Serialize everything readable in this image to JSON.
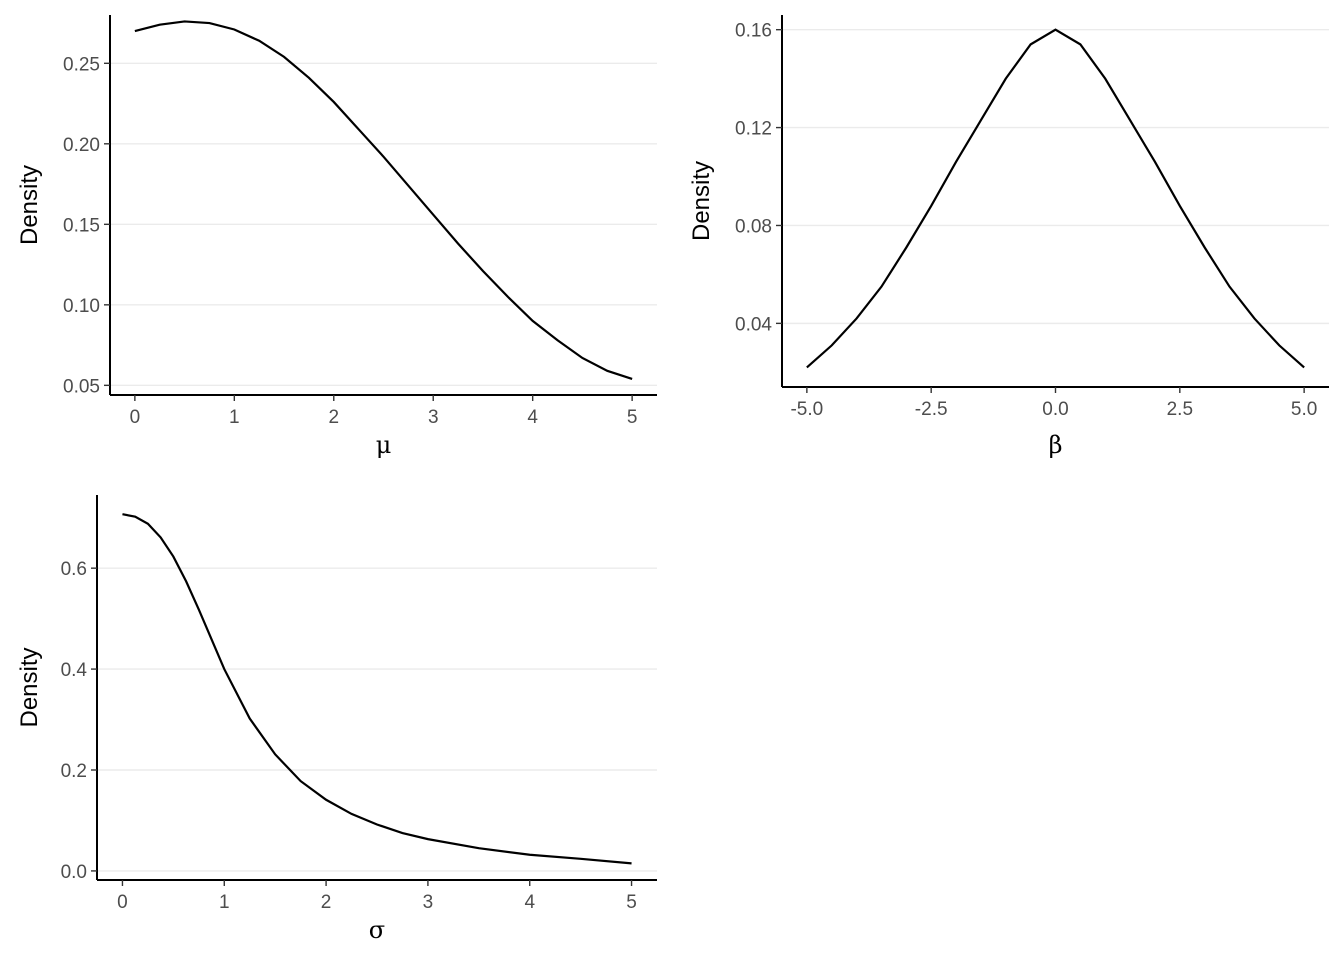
{
  "chart_data": [
    {
      "type": "line",
      "xlabel": "μ",
      "ylabel": "Density",
      "xlim": [
        -0.25,
        5.25
      ],
      "ylim": [
        0.044,
        0.28
      ],
      "xticks": [
        0,
        1,
        2,
        3,
        4,
        5
      ],
      "xtick_labels": [
        "0",
        "1",
        "2",
        "3",
        "4",
        "5"
      ],
      "yticks": [
        0.05,
        0.1,
        0.15,
        0.2,
        0.25
      ],
      "ytick_labels": [
        "0.05",
        "0.10",
        "0.15",
        "0.20",
        "0.25"
      ],
      "grid": "horizontal major",
      "series": [
        {
          "x": [
            0,
            0.25,
            0.5,
            0.75,
            1,
            1.25,
            1.5,
            1.75,
            2,
            2.25,
            2.5,
            2.75,
            3,
            3.25,
            3.5,
            3.75,
            4,
            4.25,
            4.5,
            4.75,
            5
          ],
          "y": [
            0.27,
            0.274,
            0.276,
            0.275,
            0.271,
            0.264,
            0.254,
            0.241,
            0.226,
            0.209,
            0.192,
            0.174,
            0.156,
            0.138,
            0.121,
            0.105,
            0.09,
            0.078,
            0.067,
            0.059,
            0.054
          ]
        }
      ]
    },
    {
      "type": "line",
      "xlabel": "β",
      "ylabel": "Density",
      "xlim": [
        -5.5,
        5.5
      ],
      "ylim": [
        0.014,
        0.166
      ],
      "xticks": [
        -5,
        -2.5,
        0,
        2.5,
        5
      ],
      "xtick_labels": [
        "-5.0",
        "-2.5",
        "0.0",
        "2.5",
        "5.0"
      ],
      "yticks": [
        0.04,
        0.08,
        0.12,
        0.16
      ],
      "ytick_labels": [
        "0.04",
        "0.08",
        "0.12",
        "0.16"
      ],
      "grid": "horizontal major",
      "series": [
        {
          "x": [
            -5,
            -4.5,
            -4,
            -3.5,
            -3,
            -2.5,
            -2,
            -1.5,
            -1,
            -0.5,
            0,
            0.5,
            1,
            1.5,
            2,
            2.5,
            3,
            3.5,
            4,
            4.5,
            5
          ],
          "y": [
            0.022,
            0.031,
            0.042,
            0.055,
            0.071,
            0.088,
            0.106,
            0.123,
            0.14,
            0.154,
            0.16,
            0.154,
            0.14,
            0.123,
            0.106,
            0.088,
            0.071,
            0.055,
            0.042,
            0.031,
            0.022
          ]
        }
      ]
    },
    {
      "type": "line",
      "xlabel": "σ",
      "ylabel": "Density",
      "xlim": [
        -0.25,
        5.25
      ],
      "ylim": [
        -0.018,
        0.745
      ],
      "xticks": [
        0,
        1,
        2,
        3,
        4,
        5
      ],
      "xtick_labels": [
        "0",
        "1",
        "2",
        "3",
        "4",
        "5"
      ],
      "yticks": [
        0.0,
        0.2,
        0.4,
        0.6
      ],
      "ytick_labels": [
        "0.0",
        "0.2",
        "0.4",
        "0.6"
      ],
      "grid": "horizontal major",
      "series": [
        {
          "x": [
            0,
            0.125,
            0.25,
            0.375,
            0.5,
            0.625,
            0.75,
            0.875,
            1,
            1.25,
            1.5,
            1.75,
            2,
            2.25,
            2.5,
            2.75,
            3,
            3.5,
            4,
            4.5,
            5
          ],
          "y": [
            0.707,
            0.702,
            0.688,
            0.661,
            0.623,
            0.574,
            0.518,
            0.459,
            0.4,
            0.302,
            0.231,
            0.178,
            0.141,
            0.113,
            0.092,
            0.075,
            0.063,
            0.045,
            0.032,
            0.024,
            0.015
          ]
        }
      ]
    }
  ]
}
